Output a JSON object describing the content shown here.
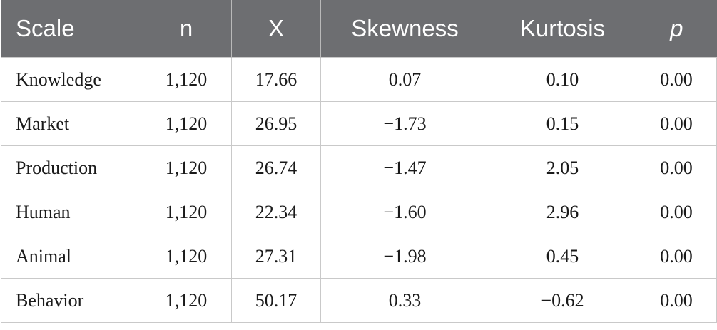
{
  "table": {
    "headers": [
      "Scale",
      "n",
      "X",
      "Skewness",
      "Kurtosis",
      "p"
    ],
    "rows": [
      [
        "Knowledge",
        "1,120",
        "17.66",
        "0.07",
        "0.10",
        "0.00"
      ],
      [
        "Market",
        "1,120",
        "26.95",
        "−1.73",
        "0.15",
        "0.00"
      ],
      [
        "Production",
        "1,120",
        "26.74",
        "−1.47",
        "2.05",
        "0.00"
      ],
      [
        "Human",
        "1,120",
        "22.34",
        "−1.60",
        "2.96",
        "0.00"
      ],
      [
        "Animal",
        "1,120",
        "27.31",
        "−1.98",
        "0.45",
        "0.00"
      ],
      [
        "Behavior",
        "1,120",
        "50.17",
        "0.33",
        "−0.62",
        "0.00"
      ]
    ]
  },
  "colors": {
    "header_bg": "#6d6e71",
    "header_text": "#ffffff",
    "border": "#c9c9c9"
  }
}
